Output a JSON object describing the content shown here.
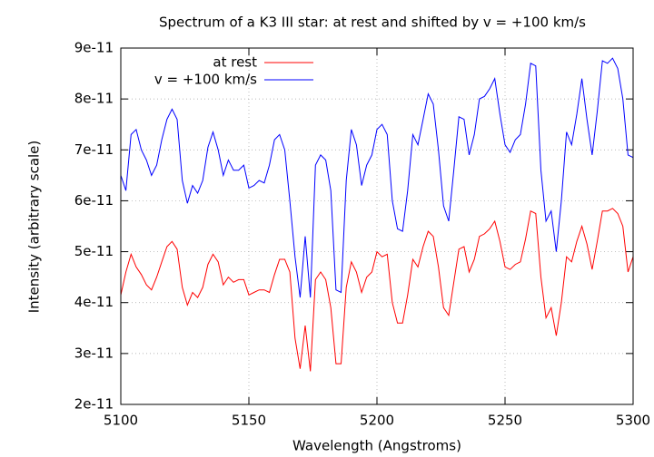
{
  "chart_data": {
    "type": "line",
    "title": "Spectrum of a K3 III star: at rest and shifted by v = +100 km/s",
    "xlabel": "Wavelength (Angstroms)",
    "ylabel": "Intensity (arbitrary scale)",
    "x": [
      5100,
      5102,
      5104,
      5106,
      5108,
      5110,
      5112,
      5114,
      5116,
      5118,
      5120,
      5122,
      5124,
      5126,
      5128,
      5130,
      5132,
      5134,
      5136,
      5138,
      5140,
      5142,
      5144,
      5146,
      5148,
      5150,
      5152,
      5154,
      5156,
      5158,
      5160,
      5162,
      5164,
      5166,
      5168,
      5170,
      5172,
      5174,
      5176,
      5178,
      5180,
      5182,
      5184,
      5186,
      5188,
      5190,
      5192,
      5194,
      5196,
      5198,
      5200,
      5202,
      5204,
      5206,
      5208,
      5210,
      5212,
      5214,
      5216,
      5218,
      5220,
      5222,
      5224,
      5226,
      5228,
      5230,
      5232,
      5234,
      5236,
      5238,
      5240,
      5242,
      5244,
      5246,
      5248,
      5250,
      5252,
      5254,
      5256,
      5258,
      5260,
      5262,
      5264,
      5266,
      5268,
      5270,
      5272,
      5274,
      5276,
      5278,
      5280,
      5282,
      5284,
      5286,
      5288,
      5290,
      5292,
      5294,
      5296,
      5298,
      5300
    ],
    "series": [
      {
        "name": "at rest",
        "color": "#ff0000",
        "values": [
          4.15e-11,
          4.6e-11,
          4.95e-11,
          4.7e-11,
          4.55e-11,
          4.35e-11,
          4.25e-11,
          4.5e-11,
          4.8e-11,
          5.1e-11,
          5.2e-11,
          5.05e-11,
          4.3e-11,
          3.95e-11,
          4.2e-11,
          4.1e-11,
          4.3e-11,
          4.75e-11,
          4.95e-11,
          4.8e-11,
          4.35e-11,
          4.5e-11,
          4.4e-11,
          4.45e-11,
          4.45e-11,
          4.15e-11,
          4.2e-11,
          4.25e-11,
          4.25e-11,
          4.2e-11,
          4.55e-11,
          4.85e-11,
          4.85e-11,
          4.6e-11,
          3.3e-11,
          2.7e-11,
          3.55e-11,
          2.65e-11,
          4.45e-11,
          4.6e-11,
          4.45e-11,
          3.9e-11,
          2.8e-11,
          2.8e-11,
          4.3e-11,
          4.8e-11,
          4.6e-11,
          4.2e-11,
          4.5e-11,
          4.6e-11,
          5e-11,
          4.9e-11,
          4.95e-11,
          4e-11,
          3.6e-11,
          3.6e-11,
          4.15e-11,
          4.85e-11,
          4.7e-11,
          5.1e-11,
          5.4e-11,
          5.3e-11,
          4.7e-11,
          3.9e-11,
          3.75e-11,
          4.4e-11,
          5.05e-11,
          5.1e-11,
          4.6e-11,
          4.85e-11,
          5.3e-11,
          5.35e-11,
          5.45e-11,
          5.6e-11,
          5.2e-11,
          4.7e-11,
          4.65e-11,
          4.75e-11,
          4.8e-11,
          5.25e-11,
          5.8e-11,
          5.75e-11,
          4.5e-11,
          3.7e-11,
          3.9e-11,
          3.35e-11,
          4e-11,
          4.9e-11,
          4.8e-11,
          5.2e-11,
          5.5e-11,
          5.15e-11,
          4.65e-11,
          5.2e-11,
          5.8e-11,
          5.8e-11,
          5.85e-11,
          5.75e-11,
          5.5e-11,
          4.6e-11,
          4.9e-11
        ]
      },
      {
        "name": "v = +100 km/s",
        "color": "#0000ff",
        "values": [
          6.5e-11,
          6.2e-11,
          7.3e-11,
          7.4e-11,
          7e-11,
          6.8e-11,
          6.5e-11,
          6.7e-11,
          7.2e-11,
          7.6e-11,
          7.8e-11,
          7.6e-11,
          6.4e-11,
          5.95e-11,
          6.3e-11,
          6.15e-11,
          6.4e-11,
          7.05e-11,
          7.35e-11,
          7e-11,
          6.5e-11,
          6.8e-11,
          6.6e-11,
          6.6e-11,
          6.7e-11,
          6.25e-11,
          6.3e-11,
          6.4e-11,
          6.35e-11,
          6.7e-11,
          7.2e-11,
          7.3e-11,
          7e-11,
          6e-11,
          4.9e-11,
          4.1e-11,
          5.3e-11,
          4.1e-11,
          6.7e-11,
          6.9e-11,
          6.8e-11,
          6.2e-11,
          4.25e-11,
          4.2e-11,
          6.4e-11,
          7.4e-11,
          7.1e-11,
          6.3e-11,
          6.7e-11,
          6.9e-11,
          7.4e-11,
          7.5e-11,
          7.3e-11,
          6e-11,
          5.45e-11,
          5.4e-11,
          6.2e-11,
          7.3e-11,
          7.1e-11,
          7.6e-11,
          8.1e-11,
          7.9e-11,
          7e-11,
          5.9e-11,
          5.6e-11,
          6.6e-11,
          7.65e-11,
          7.6e-11,
          6.9e-11,
          7.3e-11,
          8e-11,
          8.05e-11,
          8.2e-11,
          8.4e-11,
          7.7e-11,
          7.1e-11,
          6.95e-11,
          7.2e-11,
          7.3e-11,
          7.9e-11,
          8.7e-11,
          8.65e-11,
          6.6e-11,
          5.6e-11,
          5.8e-11,
          5e-11,
          6e-11,
          7.35e-11,
          7.1e-11,
          7.7e-11,
          8.4e-11,
          7.6e-11,
          6.9e-11,
          7.75e-11,
          8.75e-11,
          8.7e-11,
          8.8e-11,
          8.6e-11,
          8e-11,
          6.9e-11,
          6.85e-11
        ]
      }
    ],
    "xlim": [
      5100,
      5300
    ],
    "xticks": [
      5100,
      5150,
      5200,
      5250,
      5300
    ],
    "ylim": [
      2e-11,
      9e-11
    ],
    "yticks": [
      2e-11,
      3e-11,
      4e-11,
      5e-11,
      6e-11,
      7e-11,
      8e-11,
      9e-11
    ],
    "grid": true,
    "legend": "top-left"
  }
}
